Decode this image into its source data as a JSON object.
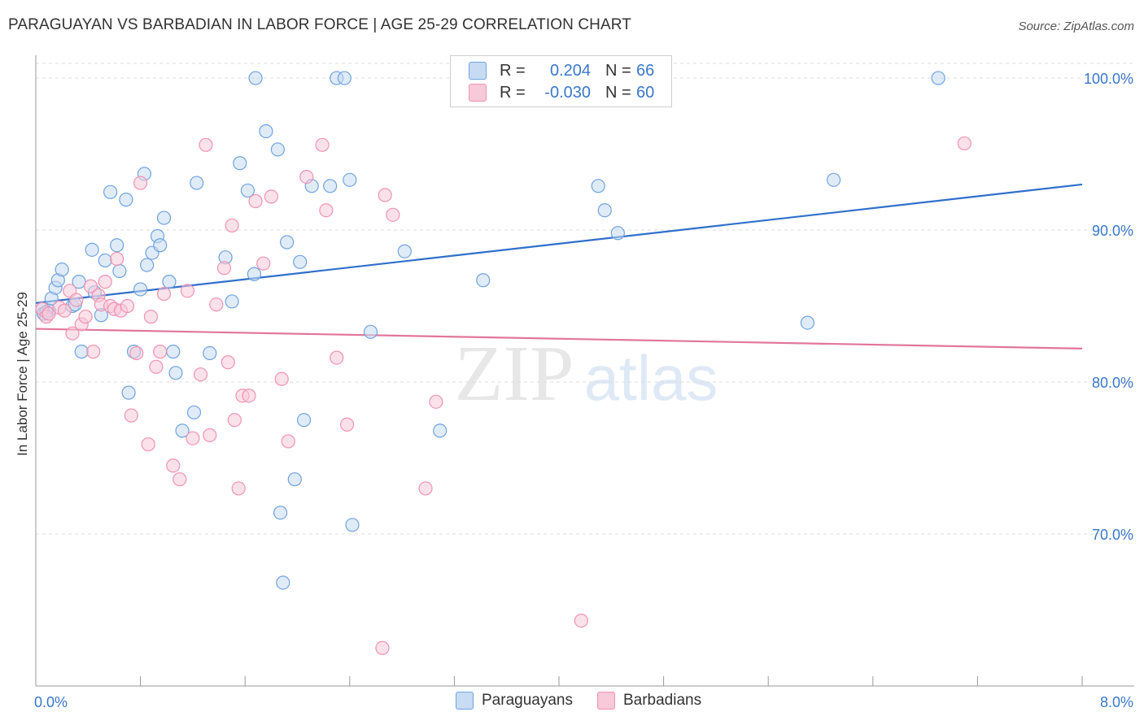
{
  "title": "PARAGUAYAN VS BARBADIAN IN LABOR FORCE | AGE 25-29 CORRELATION CHART",
  "source": "Source: ZipAtlas.com",
  "watermark": {
    "zip": "ZIP",
    "atlas": "atlas"
  },
  "legend": {
    "rows": [
      {
        "r_label": "R =",
        "r_value": "0.204",
        "n_label": "N =",
        "n_value": "66",
        "color": "#6fa3e0"
      },
      {
        "r_label": "R =",
        "r_value": "-0.030",
        "n_label": "N =",
        "n_value": "60",
        "color": "#ef93b0"
      }
    ]
  },
  "bottom_legend": [
    "Paraguayans",
    "Barbadians"
  ],
  "chart_data": {
    "type": "scatter",
    "title": "PARAGUAYAN VS BARBADIAN IN LABOR FORCE | AGE 25-29 CORRELATION CHART",
    "xlabel": "",
    "ylabel": "In Labor Force | Age 25-29",
    "xlim": [
      0,
      8
    ],
    "ylim": [
      60,
      101.5
    ],
    "x_tick_labels": [
      "0.0%",
      "8.0%"
    ],
    "y_tick_values": [
      70,
      80,
      90,
      100
    ],
    "y_tick_labels": [
      "70.0%",
      "80.0%",
      "90.0%",
      "100.0%"
    ],
    "grid": true,
    "legend_placement": "top-center",
    "series": [
      {
        "name": "Paraguayans",
        "color": "#6fa3e0",
        "fill": "#c7dbf3",
        "trend": {
          "x": [
            0,
            8
          ],
          "y": [
            85.2,
            93.0
          ]
        },
        "points": [
          [
            0.05,
            84.8
          ],
          [
            0.06,
            84.5
          ],
          [
            0.1,
            84.7
          ],
          [
            0.12,
            85.5
          ],
          [
            0.15,
            86.2
          ],
          [
            0.17,
            86.7
          ],
          [
            0.2,
            87.4
          ],
          [
            0.28,
            85.0
          ],
          [
            0.3,
            85.1
          ],
          [
            0.33,
            86.6
          ],
          [
            0.35,
            82.0
          ],
          [
            0.43,
            88.7
          ],
          [
            0.45,
            85.9
          ],
          [
            0.5,
            84.4
          ],
          [
            0.53,
            88.0
          ],
          [
            0.57,
            92.5
          ],
          [
            0.62,
            89.0
          ],
          [
            0.64,
            87.3
          ],
          [
            0.69,
            92.0
          ],
          [
            0.71,
            79.3
          ],
          [
            0.75,
            82.0
          ],
          [
            0.8,
            86.1
          ],
          [
            0.83,
            93.7
          ],
          [
            0.85,
            87.7
          ],
          [
            0.89,
            88.5
          ],
          [
            0.93,
            89.6
          ],
          [
            0.95,
            89.0
          ],
          [
            0.98,
            90.8
          ],
          [
            1.02,
            86.6
          ],
          [
            1.05,
            82.0
          ],
          [
            1.07,
            80.6
          ],
          [
            1.12,
            76.8
          ],
          [
            1.21,
            78.0
          ],
          [
            1.23,
            93.1
          ],
          [
            1.33,
            81.9
          ],
          [
            1.45,
            88.2
          ],
          [
            1.5,
            85.3
          ],
          [
            1.56,
            94.4
          ],
          [
            1.62,
            92.6
          ],
          [
            1.67,
            87.1
          ],
          [
            1.68,
            100.0
          ],
          [
            1.76,
            96.5
          ],
          [
            1.85,
            95.3
          ],
          [
            1.87,
            71.4
          ],
          [
            1.89,
            66.8
          ],
          [
            1.92,
            89.2
          ],
          [
            1.98,
            73.6
          ],
          [
            2.02,
            87.9
          ],
          [
            2.05,
            77.5
          ],
          [
            2.11,
            92.9
          ],
          [
            2.25,
            92.9
          ],
          [
            2.3,
            100.0
          ],
          [
            2.36,
            100.0
          ],
          [
            2.4,
            93.3
          ],
          [
            2.42,
            70.6
          ],
          [
            2.56,
            83.3
          ],
          [
            2.82,
            88.6
          ],
          [
            3.09,
            76.8
          ],
          [
            3.42,
            86.7
          ],
          [
            4.3,
            92.9
          ],
          [
            4.35,
            91.3
          ],
          [
            4.45,
            89.8
          ],
          [
            5.9,
            83.9
          ],
          [
            6.1,
            93.3
          ],
          [
            6.9,
            100.0
          ],
          [
            0.08,
            84.6
          ]
        ]
      },
      {
        "name": "Barbadians",
        "color": "#ef93b0",
        "fill": "#f8c9d8",
        "trend": {
          "x": [
            0,
            8
          ],
          "y": [
            83.5,
            82.2
          ]
        },
        "points": [
          [
            0.05,
            84.8
          ],
          [
            0.08,
            84.3
          ],
          [
            0.1,
            84.5
          ],
          [
            0.18,
            84.9
          ],
          [
            0.22,
            84.7
          ],
          [
            0.26,
            86.0
          ],
          [
            0.28,
            83.2
          ],
          [
            0.31,
            85.4
          ],
          [
            0.35,
            83.8
          ],
          [
            0.38,
            84.3
          ],
          [
            0.42,
            86.3
          ],
          [
            0.44,
            82.0
          ],
          [
            0.48,
            85.7
          ],
          [
            0.5,
            85.1
          ],
          [
            0.53,
            86.6
          ],
          [
            0.57,
            85.0
          ],
          [
            0.6,
            84.8
          ],
          [
            0.62,
            88.1
          ],
          [
            0.65,
            84.7
          ],
          [
            0.7,
            85.0
          ],
          [
            0.73,
            77.8
          ],
          [
            0.77,
            81.9
          ],
          [
            0.8,
            93.1
          ],
          [
            0.86,
            75.9
          ],
          [
            0.88,
            84.3
          ],
          [
            0.92,
            81.0
          ],
          [
            0.95,
            82.0
          ],
          [
            0.98,
            85.8
          ],
          [
            1.05,
            74.5
          ],
          [
            1.1,
            73.6
          ],
          [
            1.16,
            86.0
          ],
          [
            1.2,
            76.3
          ],
          [
            1.26,
            80.5
          ],
          [
            1.3,
            95.6
          ],
          [
            1.33,
            76.5
          ],
          [
            1.38,
            85.1
          ],
          [
            1.44,
            87.5
          ],
          [
            1.47,
            81.3
          ],
          [
            1.5,
            90.3
          ],
          [
            1.52,
            77.5
          ],
          [
            1.55,
            73.0
          ],
          [
            1.58,
            79.1
          ],
          [
            1.63,
            79.1
          ],
          [
            1.68,
            91.9
          ],
          [
            1.74,
            87.8
          ],
          [
            1.8,
            92.2
          ],
          [
            1.88,
            80.2
          ],
          [
            1.93,
            76.1
          ],
          [
            2.07,
            93.5
          ],
          [
            2.19,
            95.6
          ],
          [
            2.22,
            91.3
          ],
          [
            2.3,
            81.6
          ],
          [
            2.38,
            77.2
          ],
          [
            2.65,
            62.5
          ],
          [
            2.67,
            92.3
          ],
          [
            2.73,
            91.0
          ],
          [
            2.98,
            73.0
          ],
          [
            3.06,
            78.7
          ],
          [
            4.17,
            64.3
          ],
          [
            7.1,
            95.7
          ]
        ]
      }
    ]
  }
}
